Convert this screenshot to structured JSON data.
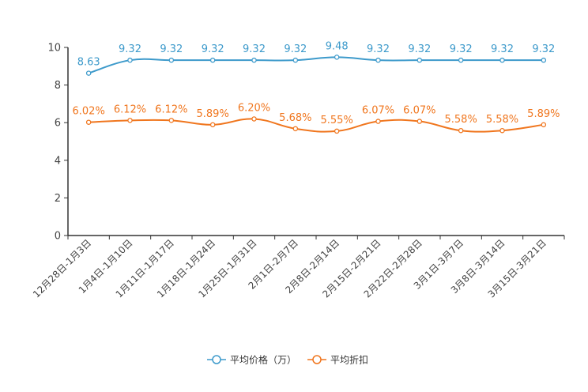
{
  "chart_data": {
    "type": "line",
    "categories": [
      "12月28日-1月3日",
      "1月4日-1月10日",
      "1月11日-1月17日",
      "1月18日-1月24日",
      "1月25日-1月31日",
      "2月1日-2月7日",
      "2月8日-2月14日",
      "2月15日-2月21日",
      "2月22日-2月28日",
      "3月1日-3月7日",
      "3月8日-3月14日",
      "3月15日-3月21日"
    ],
    "ylim": [
      0,
      10
    ],
    "yticks": [
      "0",
      "2",
      "4",
      "6",
      "8",
      "10"
    ],
    "series": [
      {
        "name": "平均价格（万）",
        "color": "#3d9acb",
        "values": [
          8.63,
          9.32,
          9.32,
          9.32,
          9.32,
          9.32,
          9.48,
          9.32,
          9.32,
          9.32,
          9.32,
          9.32
        ],
        "labels": [
          "8.63",
          "9.32",
          "9.32",
          "9.32",
          "9.32",
          "9.32",
          "9.48",
          "9.32",
          "9.32",
          "9.32",
          "9.32",
          "9.32"
        ]
      },
      {
        "name": "平均折扣",
        "color": "#f0761e",
        "values": [
          6.02,
          6.12,
          6.12,
          5.89,
          6.2,
          5.68,
          5.55,
          6.07,
          6.07,
          5.58,
          5.58,
          5.89
        ],
        "labels": [
          "6.02%",
          "6.12%",
          "6.12%",
          "5.89%",
          "6.20%",
          "5.68%",
          "5.55%",
          "6.07%",
          "6.07%",
          "5.58%",
          "5.58%",
          "5.89%"
        ]
      }
    ]
  }
}
